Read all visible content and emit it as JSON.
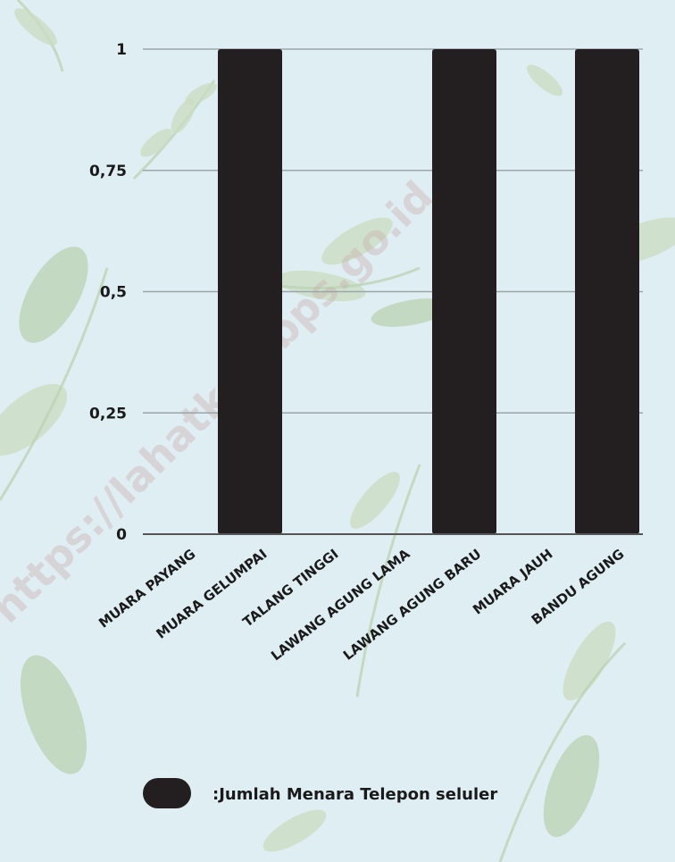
{
  "watermark": "https://lahatkab.bps.go.id",
  "chart_data": {
    "type": "bar",
    "categories": [
      "MUARA PAYANG",
      "MUARA GELUMPAI",
      "TALANG TINGGI",
      "LAWANG AGUNG LAMA",
      "LAWANG AGUNG BARU",
      "MUARA JAUH",
      "BANDU AGUNG"
    ],
    "series": [
      {
        "name": ":Jumlah Menara Telepon seluler",
        "values": [
          0,
          1,
          0,
          0,
          1,
          0,
          1
        ],
        "color": "#231f20"
      }
    ],
    "yticks": [
      "0",
      "0,25",
      "0,5",
      "0,75",
      "1"
    ],
    "ytick_values": [
      0,
      0.25,
      0.5,
      0.75,
      1
    ],
    "ylim": [
      0,
      1
    ],
    "grid": true,
    "legend_position": "bottom",
    "title": "",
    "xlabel": "",
    "ylabel": ""
  }
}
